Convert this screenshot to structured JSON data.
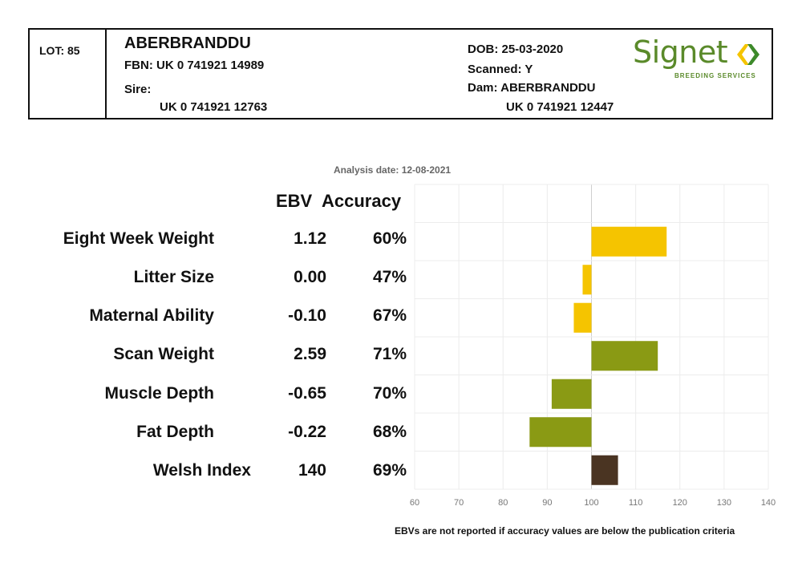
{
  "header": {
    "lot": "LOT: 85",
    "name": "ABERBRANDDU",
    "fbn": "FBN: UK 0 741921 14989",
    "sire_label": "Sire:",
    "sire_id": "UK 0 741921 12763",
    "dob": "DOB: 25-03-2020",
    "scanned": "Scanned: Y",
    "dam": "Dam: ABERBRANDDU",
    "dam_id": "UK 0 741921 12447",
    "logo_word": "Signet",
    "logo_sub": "BREEDING SERVICES",
    "logo_color": "#5a8a2a",
    "logo_mark_colors": [
      "#f5c400",
      "#3d8a2a"
    ]
  },
  "analysis_date": "Analysis date: 12-08-2021",
  "columns": {
    "ebv": "EBV",
    "accuracy": "Accuracy"
  },
  "footnote": "EBVs are not reported if accuracy values are below the publication criteria",
  "rows": [
    {
      "trait": "Eight Week Weight",
      "ebv": "1.12",
      "accuracy": "60%"
    },
    {
      "trait": "Litter Size",
      "ebv": "0.00",
      "accuracy": "47%"
    },
    {
      "trait": "Maternal Ability",
      "ebv": "-0.10",
      "accuracy": "67%"
    },
    {
      "trait": "Scan Weight",
      "ebv": "2.59",
      "accuracy": "71%"
    },
    {
      "trait": "Muscle Depth",
      "ebv": "-0.65",
      "accuracy": "70%"
    },
    {
      "trait": "Fat Depth",
      "ebv": "-0.22",
      "accuracy": "68%"
    },
    {
      "trait": "Welsh Index",
      "ebv": "140",
      "accuracy": "69%"
    }
  ],
  "chart_data": {
    "type": "bar",
    "orientation": "horizontal",
    "categories": [
      "Eight Week Weight",
      "Litter Size",
      "Maternal Ability",
      "Scan Weight",
      "Muscle Depth",
      "Fat Depth",
      "Welsh Index"
    ],
    "values": [
      117,
      98,
      96,
      115,
      91,
      86,
      106
    ],
    "baseline": 100,
    "xlim": [
      60,
      140
    ],
    "x_ticks": [
      "60",
      "70",
      "80",
      "90",
      "100",
      "110",
      "120",
      "130",
      "140"
    ],
    "grid": true,
    "bar_colors": [
      "#f5c400",
      "#f5c400",
      "#f5c400",
      "#8a9a14",
      "#8a9a14",
      "#8a9a14",
      "#4a3422"
    ]
  }
}
